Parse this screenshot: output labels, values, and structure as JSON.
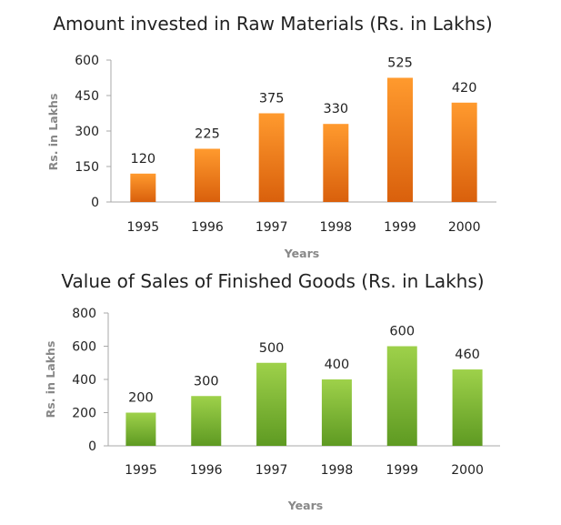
{
  "chart_data": [
    {
      "type": "bar",
      "title": "Amount invested in Raw Materials (Rs. in Lakhs)",
      "xlabel": "Years",
      "ylabel": "Rs. in Lakhs",
      "categories": [
        "1995",
        "1996",
        "1997",
        "1998",
        "1999",
        "2000"
      ],
      "values": [
        120,
        225,
        375,
        330,
        525,
        420
      ],
      "ylim": [
        0,
        600
      ],
      "yticks": [
        0,
        150,
        300,
        450,
        600
      ],
      "grid": false,
      "legend": "none",
      "bar_color_top": "#ff9a2e",
      "bar_color_bottom": "#d9600c"
    },
    {
      "type": "bar",
      "title": "Value of Sales of Finished Goods (Rs. in Lakhs)",
      "xlabel": "Years",
      "ylabel": "Rs. in Lakhs",
      "categories": [
        "1995",
        "1996",
        "1997",
        "1998",
        "1999",
        "2000"
      ],
      "values": [
        200,
        300,
        500,
        400,
        600,
        460
      ],
      "ylim": [
        0,
        800
      ],
      "yticks": [
        0,
        200,
        400,
        600,
        800
      ],
      "grid": false,
      "legend": "none",
      "bar_color_top": "#9ed14a",
      "bar_color_bottom": "#5e9a22"
    }
  ]
}
